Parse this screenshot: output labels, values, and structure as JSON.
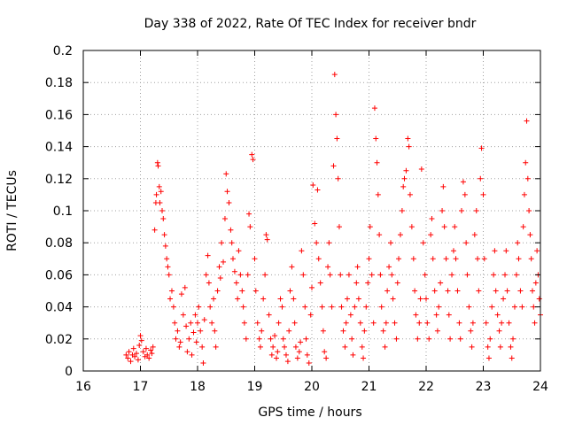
{
  "chart_data": {
    "type": "scatter",
    "title": "Day 338 of 2022, Rate Of TEC Index for receiver bndr",
    "xlabel": "GPS time / hours",
    "ylabel": "ROTI / TECUs",
    "xlim": [
      16,
      24
    ],
    "ylim": [
      0,
      0.2
    ],
    "xticks": [
      16,
      17,
      18,
      19,
      20,
      21,
      22,
      23,
      24
    ],
    "yticks": [
      0,
      0.02,
      0.04,
      0.06,
      0.08,
      0.1,
      0.12,
      0.14,
      0.16,
      0.18,
      0.2
    ],
    "xtick_labels": [
      "16",
      "17",
      "18",
      "19",
      "20",
      "21",
      "22",
      "23",
      "24"
    ],
    "ytick_labels": [
      "0",
      "0.02",
      "0.04",
      "0.06",
      "0.08",
      "0.1",
      "0.12",
      "0.14",
      "0.16",
      "0.18",
      "0.2"
    ],
    "grid": true,
    "marker": "+",
    "marker_color": "#ff0000",
    "series": [
      {
        "values": [
          [
            16.75,
            0.01
          ],
          [
            16.78,
            0.008
          ],
          [
            16.8,
            0.012
          ],
          [
            16.83,
            0.006
          ],
          [
            16.86,
            0.01
          ],
          [
            16.88,
            0.014
          ],
          [
            16.9,
            0.009
          ],
          [
            16.93,
            0.011
          ],
          [
            16.96,
            0.007
          ],
          [
            16.98,
            0.016
          ],
          [
            17.0,
            0.022
          ],
          [
            17.02,
            0.019
          ],
          [
            17.05,
            0.012
          ],
          [
            17.08,
            0.009
          ],
          [
            17.1,
            0.014
          ],
          [
            17.12,
            0.01
          ],
          [
            17.15,
            0.008
          ],
          [
            17.18,
            0.013
          ],
          [
            17.2,
            0.011
          ],
          [
            17.22,
            0.015
          ],
          [
            17.25,
            0.088
          ],
          [
            17.27,
            0.105
          ],
          [
            17.28,
            0.11
          ],
          [
            17.3,
            0.13
          ],
          [
            17.31,
            0.128
          ],
          [
            17.33,
            0.115
          ],
          [
            17.34,
            0.105
          ],
          [
            17.36,
            0.112
          ],
          [
            17.38,
            0.1
          ],
          [
            17.4,
            0.095
          ],
          [
            17.42,
            0.085
          ],
          [
            17.44,
            0.078
          ],
          [
            17.46,
            0.07
          ],
          [
            17.48,
            0.065
          ],
          [
            17.5,
            0.06
          ],
          [
            17.52,
            0.045
          ],
          [
            17.55,
            0.05
          ],
          [
            17.58,
            0.04
          ],
          [
            17.6,
            0.03
          ],
          [
            17.62,
            0.02
          ],
          [
            17.65,
            0.025
          ],
          [
            17.68,
            0.015
          ],
          [
            17.7,
            0.018
          ],
          [
            17.72,
            0.048
          ],
          [
            17.75,
            0.035
          ],
          [
            17.78,
            0.052
          ],
          [
            17.8,
            0.028
          ],
          [
            17.82,
            0.012
          ],
          [
            17.85,
            0.02
          ],
          [
            17.88,
            0.03
          ],
          [
            17.9,
            0.01
          ],
          [
            17.93,
            0.024
          ],
          [
            17.96,
            0.035
          ],
          [
            17.98,
            0.018
          ],
          [
            18.0,
            0.03
          ],
          [
            18.02,
            0.04
          ],
          [
            18.05,
            0.025
          ],
          [
            18.08,
            0.015
          ],
          [
            18.1,
            0.005
          ],
          [
            18.12,
            0.032
          ],
          [
            18.15,
            0.06
          ],
          [
            18.18,
            0.072
          ],
          [
            18.2,
            0.055
          ],
          [
            18.22,
            0.04
          ],
          [
            18.25,
            0.03
          ],
          [
            18.28,
            0.045
          ],
          [
            18.3,
            0.025
          ],
          [
            18.32,
            0.015
          ],
          [
            18.35,
            0.05
          ],
          [
            18.38,
            0.065
          ],
          [
            18.4,
            0.058
          ],
          [
            18.42,
            0.08
          ],
          [
            18.45,
            0.068
          ],
          [
            18.48,
            0.095
          ],
          [
            18.5,
            0.123
          ],
          [
            18.52,
            0.112
          ],
          [
            18.55,
            0.105
          ],
          [
            18.58,
            0.088
          ],
          [
            18.6,
            0.08
          ],
          [
            18.62,
            0.07
          ],
          [
            18.65,
            0.062
          ],
          [
            18.68,
            0.055
          ],
          [
            18.7,
            0.045
          ],
          [
            18.72,
            0.075
          ],
          [
            18.75,
            0.06
          ],
          [
            18.78,
            0.05
          ],
          [
            18.8,
            0.04
          ],
          [
            18.82,
            0.03
          ],
          [
            18.85,
            0.02
          ],
          [
            18.88,
            0.06
          ],
          [
            18.9,
            0.098
          ],
          [
            18.92,
            0.09
          ],
          [
            18.95,
            0.135
          ],
          [
            18.97,
            0.132
          ],
          [
            19.0,
            0.07
          ],
          [
            19.02,
            0.05
          ],
          [
            19.05,
            0.03
          ],
          [
            19.08,
            0.02
          ],
          [
            19.1,
            0.015
          ],
          [
            19.12,
            0.025
          ],
          [
            19.15,
            0.045
          ],
          [
            19.18,
            0.06
          ],
          [
            19.2,
            0.085
          ],
          [
            19.22,
            0.082
          ],
          [
            19.25,
            0.035
          ],
          [
            19.28,
            0.02
          ],
          [
            19.3,
            0.01
          ],
          [
            19.32,
            0.015
          ],
          [
            19.35,
            0.022
          ],
          [
            19.38,
            0.008
          ],
          [
            19.4,
            0.012
          ],
          [
            19.42,
            0.03
          ],
          [
            19.45,
            0.045
          ],
          [
            19.48,
            0.04
          ],
          [
            19.5,
            0.02
          ],
          [
            19.52,
            0.015
          ],
          [
            19.55,
            0.01
          ],
          [
            19.58,
            0.006
          ],
          [
            19.6,
            0.025
          ],
          [
            19.62,
            0.05
          ],
          [
            19.65,
            0.065
          ],
          [
            19.68,
            0.045
          ],
          [
            19.7,
            0.03
          ],
          [
            19.72,
            0.015
          ],
          [
            19.75,
            0.008
          ],
          [
            19.78,
            0.012
          ],
          [
            19.8,
            0.018
          ],
          [
            19.82,
            0.075
          ],
          [
            19.85,
            0.06
          ],
          [
            19.88,
            0.04
          ],
          [
            19.9,
            0.02
          ],
          [
            19.92,
            0.01
          ],
          [
            19.95,
            0.005
          ],
          [
            19.98,
            0.035
          ],
          [
            20.0,
            0.052
          ],
          [
            20.02,
            0.116
          ],
          [
            20.05,
            0.092
          ],
          [
            20.08,
            0.08
          ],
          [
            20.1,
            0.113
          ],
          [
            20.12,
            0.07
          ],
          [
            20.15,
            0.055
          ],
          [
            20.18,
            0.04
          ],
          [
            20.2,
            0.025
          ],
          [
            20.22,
            0.012
          ],
          [
            20.25,
            0.008
          ],
          [
            20.28,
            0.065
          ],
          [
            20.3,
            0.08
          ],
          [
            20.32,
            0.06
          ],
          [
            20.35,
            0.04
          ],
          [
            20.38,
            0.128
          ],
          [
            20.4,
            0.185
          ],
          [
            20.42,
            0.16
          ],
          [
            20.44,
            0.145
          ],
          [
            20.46,
            0.12
          ],
          [
            20.48,
            0.09
          ],
          [
            20.5,
            0.06
          ],
          [
            20.52,
            0.04
          ],
          [
            20.55,
            0.025
          ],
          [
            20.58,
            0.015
          ],
          [
            20.6,
            0.03
          ],
          [
            20.62,
            0.045
          ],
          [
            20.65,
            0.06
          ],
          [
            20.68,
            0.035
          ],
          [
            20.7,
            0.02
          ],
          [
            20.72,
            0.01
          ],
          [
            20.75,
            0.04
          ],
          [
            20.78,
            0.055
          ],
          [
            20.8,
            0.065
          ],
          [
            20.82,
            0.045
          ],
          [
            20.85,
            0.03
          ],
          [
            20.88,
            0.015
          ],
          [
            20.9,
            0.008
          ],
          [
            20.92,
            0.025
          ],
          [
            20.95,
            0.04
          ],
          [
            20.98,
            0.055
          ],
          [
            21.0,
            0.07
          ],
          [
            21.02,
            0.09
          ],
          [
            21.05,
            0.06
          ],
          [
            21.08,
            0.03
          ],
          [
            21.1,
            0.164
          ],
          [
            21.12,
            0.145
          ],
          [
            21.14,
            0.13
          ],
          [
            21.16,
            0.11
          ],
          [
            21.18,
            0.085
          ],
          [
            21.2,
            0.06
          ],
          [
            21.22,
            0.04
          ],
          [
            21.25,
            0.025
          ],
          [
            21.28,
            0.015
          ],
          [
            21.3,
            0.03
          ],
          [
            21.32,
            0.05
          ],
          [
            21.35,
            0.065
          ],
          [
            21.38,
            0.08
          ],
          [
            21.4,
            0.06
          ],
          [
            21.42,
            0.045
          ],
          [
            21.45,
            0.03
          ],
          [
            21.48,
            0.02
          ],
          [
            21.5,
            0.055
          ],
          [
            21.52,
            0.07
          ],
          [
            21.55,
            0.085
          ],
          [
            21.58,
            0.1
          ],
          [
            21.6,
            0.115
          ],
          [
            21.62,
            0.12
          ],
          [
            21.65,
            0.125
          ],
          [
            21.68,
            0.145
          ],
          [
            21.7,
            0.14
          ],
          [
            21.72,
            0.11
          ],
          [
            21.75,
            0.09
          ],
          [
            21.78,
            0.07
          ],
          [
            21.8,
            0.05
          ],
          [
            21.82,
            0.035
          ],
          [
            21.85,
            0.02
          ],
          [
            21.88,
            0.03
          ],
          [
            21.9,
            0.045
          ],
          [
            21.92,
            0.126
          ],
          [
            21.95,
            0.08
          ],
          [
            21.98,
            0.06
          ],
          [
            22.0,
            0.045
          ],
          [
            22.02,
            0.03
          ],
          [
            22.05,
            0.02
          ],
          [
            22.08,
            0.085
          ],
          [
            22.1,
            0.095
          ],
          [
            22.12,
            0.07
          ],
          [
            22.15,
            0.05
          ],
          [
            22.18,
            0.035
          ],
          [
            22.2,
            0.025
          ],
          [
            22.22,
            0.04
          ],
          [
            22.25,
            0.055
          ],
          [
            22.28,
            0.1
          ],
          [
            22.3,
            0.115
          ],
          [
            22.32,
            0.09
          ],
          [
            22.35,
            0.07
          ],
          [
            22.38,
            0.05
          ],
          [
            22.4,
            0.035
          ],
          [
            22.42,
            0.02
          ],
          [
            22.45,
            0.06
          ],
          [
            22.48,
            0.075
          ],
          [
            22.5,
            0.09
          ],
          [
            22.52,
            0.07
          ],
          [
            22.55,
            0.05
          ],
          [
            22.58,
            0.03
          ],
          [
            22.6,
            0.02
          ],
          [
            22.62,
            0.1
          ],
          [
            22.65,
            0.118
          ],
          [
            22.68,
            0.11
          ],
          [
            22.7,
            0.08
          ],
          [
            22.72,
            0.06
          ],
          [
            22.75,
            0.04
          ],
          [
            22.78,
            0.025
          ],
          [
            22.8,
            0.015
          ],
          [
            22.82,
            0.03
          ],
          [
            22.85,
            0.085
          ],
          [
            22.88,
            0.1
          ],
          [
            22.9,
            0.07
          ],
          [
            22.92,
            0.05
          ],
          [
            22.95,
            0.12
          ],
          [
            22.97,
            0.139
          ],
          [
            23.0,
            0.11
          ],
          [
            23.02,
            0.07
          ],
          [
            23.05,
            0.03
          ],
          [
            23.08,
            0.015
          ],
          [
            23.1,
            0.008
          ],
          [
            23.12,
            0.02
          ],
          [
            23.15,
            0.04
          ],
          [
            23.18,
            0.06
          ],
          [
            23.2,
            0.075
          ],
          [
            23.22,
            0.05
          ],
          [
            23.25,
            0.035
          ],
          [
            23.28,
            0.025
          ],
          [
            23.3,
            0.015
          ],
          [
            23.32,
            0.03
          ],
          [
            23.35,
            0.045
          ],
          [
            23.38,
            0.06
          ],
          [
            23.4,
            0.075
          ],
          [
            23.42,
            0.05
          ],
          [
            23.45,
            0.03
          ],
          [
            23.48,
            0.015
          ],
          [
            23.5,
            0.008
          ],
          [
            23.52,
            0.02
          ],
          [
            23.55,
            0.04
          ],
          [
            23.58,
            0.06
          ],
          [
            23.6,
            0.08
          ],
          [
            23.62,
            0.07
          ],
          [
            23.65,
            0.05
          ],
          [
            23.68,
            0.04
          ],
          [
            23.7,
            0.09
          ],
          [
            23.72,
            0.11
          ],
          [
            23.74,
            0.13
          ],
          [
            23.76,
            0.156
          ],
          [
            23.78,
            0.12
          ],
          [
            23.8,
            0.1
          ],
          [
            23.82,
            0.085
          ],
          [
            23.84,
            0.07
          ],
          [
            23.86,
            0.05
          ],
          [
            23.88,
            0.04
          ],
          [
            23.9,
            0.03
          ],
          [
            23.92,
            0.055
          ],
          [
            23.94,
            0.075
          ],
          [
            23.96,
            0.06
          ],
          [
            23.98,
            0.045
          ],
          [
            24.0,
            0.035
          ]
        ]
      }
    ]
  }
}
